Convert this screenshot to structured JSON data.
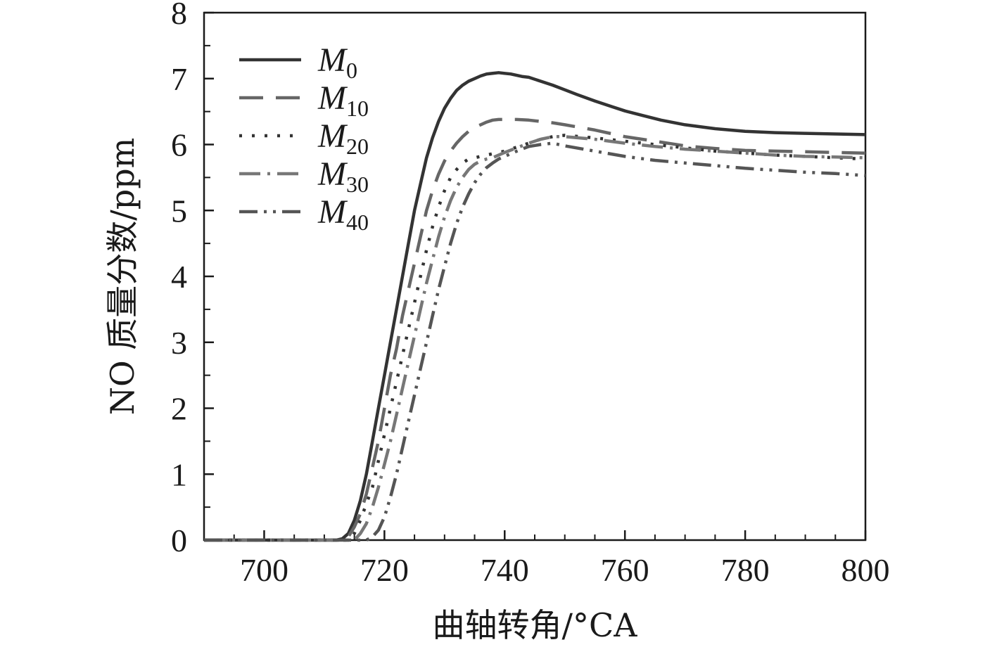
{
  "chart_data": {
    "type": "line",
    "title": "",
    "xlabel": "曲轴转角/°CA",
    "ylabel": "NO 质量分数/ppm",
    "xlim": [
      690,
      800
    ],
    "ylim": [
      0,
      8
    ],
    "xticks": [
      700,
      720,
      740,
      760,
      780,
      800
    ],
    "yticks": [
      0,
      1,
      2,
      3,
      4,
      5,
      6,
      7,
      8
    ],
    "x_minor_step": 5,
    "y_minor_step": 0.5,
    "grid": false,
    "legend_position": "top-left",
    "series": [
      {
        "name": "M0",
        "label_main": "M",
        "label_sub": "0",
        "color": "#333333",
        "dash": "",
        "x": [
          690,
          712,
          713,
          714,
          715,
          716,
          717,
          718,
          719,
          720,
          721,
          722,
          723,
          724,
          725,
          726,
          727,
          728,
          729,
          730,
          731,
          732,
          733,
          734,
          735,
          736,
          737,
          738,
          739,
          740,
          741,
          742,
          743,
          744,
          746,
          748,
          750,
          752,
          755,
          758,
          760,
          763,
          766,
          770,
          775,
          780,
          785,
          790,
          795,
          800
        ],
        "y": [
          0,
          0,
          0.02,
          0.1,
          0.3,
          0.6,
          1.0,
          1.5,
          2.0,
          2.5,
          3.0,
          3.5,
          4.0,
          4.5,
          5.0,
          5.4,
          5.8,
          6.1,
          6.35,
          6.55,
          6.7,
          6.82,
          6.9,
          6.96,
          7.0,
          7.04,
          7.07,
          7.08,
          7.09,
          7.08,
          7.07,
          7.05,
          7.03,
          7.02,
          6.96,
          6.9,
          6.83,
          6.76,
          6.66,
          6.57,
          6.51,
          6.44,
          6.37,
          6.3,
          6.24,
          6.2,
          6.18,
          6.17,
          6.16,
          6.15
        ]
      },
      {
        "name": "M10",
        "label_main": "M",
        "label_sub": "10",
        "color": "#666666",
        "dash": "34,18",
        "x": [
          690,
          713,
          714,
          715,
          716,
          717,
          718,
          719,
          720,
          721,
          722,
          723,
          724,
          725,
          726,
          727,
          728,
          729,
          730,
          731,
          732,
          733,
          734,
          735,
          736,
          737,
          738,
          739,
          740,
          742,
          744,
          746,
          748,
          750,
          755,
          760,
          765,
          770,
          775,
          780,
          785,
          790,
          795,
          800
        ],
        "y": [
          0,
          0,
          0.05,
          0.2,
          0.4,
          0.7,
          1.1,
          1.5,
          2.0,
          2.5,
          2.9,
          3.4,
          3.8,
          4.2,
          4.6,
          5.0,
          5.3,
          5.55,
          5.75,
          5.9,
          6.02,
          6.12,
          6.2,
          6.26,
          6.3,
          6.34,
          6.37,
          6.38,
          6.38,
          6.38,
          6.37,
          6.35,
          6.33,
          6.3,
          6.22,
          6.12,
          6.05,
          5.98,
          5.94,
          5.91,
          5.9,
          5.89,
          5.88,
          5.87
        ]
      },
      {
        "name": "M20",
        "label_main": "M",
        "label_sub": "20",
        "color": "#333333",
        "dash": "4,14",
        "x": [
          690,
          714,
          715,
          716,
          717,
          718,
          719,
          720,
          721,
          722,
          723,
          724,
          725,
          726,
          727,
          728,
          729,
          730,
          731,
          732,
          733,
          734,
          735,
          736,
          737,
          738,
          739,
          740,
          742,
          744,
          746,
          748,
          750,
          755,
          760,
          765,
          770,
          775,
          780,
          785,
          790,
          795,
          800
        ],
        "y": [
          0,
          0,
          0.1,
          0.3,
          0.55,
          0.8,
          1.2,
          1.6,
          2.0,
          2.4,
          2.8,
          3.2,
          3.6,
          4.0,
          4.4,
          4.75,
          5.05,
          5.3,
          5.5,
          5.62,
          5.72,
          5.78,
          5.8,
          5.82,
          5.84,
          5.86,
          5.88,
          5.9,
          5.96,
          6.02,
          6.08,
          6.12,
          6.14,
          6.1,
          6.05,
          6.0,
          5.95,
          5.9,
          5.87,
          5.84,
          5.82,
          5.8,
          5.78
        ]
      },
      {
        "name": "M30",
        "label_main": "M",
        "label_sub": "30",
        "color": "#777777",
        "dash": "30,10,4,10",
        "x": [
          690,
          715,
          716,
          717,
          718,
          719,
          720,
          721,
          722,
          723,
          724,
          725,
          726,
          727,
          728,
          729,
          730,
          731,
          732,
          733,
          734,
          735,
          736,
          737,
          738,
          739,
          740,
          742,
          744,
          746,
          748,
          750,
          755,
          760,
          765,
          770,
          775,
          780,
          785,
          790,
          795,
          800
        ],
        "y": [
          0,
          0,
          0.1,
          0.25,
          0.5,
          0.8,
          1.15,
          1.5,
          1.9,
          2.3,
          2.7,
          3.1,
          3.5,
          3.9,
          4.25,
          4.6,
          4.9,
          5.15,
          5.35,
          5.5,
          5.62,
          5.7,
          5.75,
          5.78,
          5.8,
          5.84,
          5.88,
          5.95,
          6.02,
          6.08,
          6.12,
          6.12,
          6.08,
          6.02,
          5.97,
          5.93,
          5.9,
          5.87,
          5.84,
          5.82,
          5.81,
          5.8
        ]
      },
      {
        "name": "M40",
        "label_main": "M",
        "label_sub": "40",
        "color": "#555555",
        "dash": "26,9,4,9,4,9",
        "x": [
          690,
          717,
          718,
          719,
          720,
          721,
          722,
          723,
          724,
          725,
          726,
          727,
          728,
          729,
          730,
          731,
          732,
          733,
          734,
          735,
          736,
          737,
          738,
          739,
          740,
          742,
          744,
          746,
          748,
          750,
          755,
          760,
          765,
          770,
          775,
          780,
          785,
          790,
          795,
          800
        ],
        "y": [
          0,
          0,
          0.05,
          0.15,
          0.35,
          0.65,
          1.0,
          1.4,
          1.8,
          2.2,
          2.6,
          3.0,
          3.4,
          3.8,
          4.15,
          4.5,
          4.8,
          5.05,
          5.25,
          5.42,
          5.55,
          5.65,
          5.72,
          5.78,
          5.82,
          5.9,
          5.97,
          6.0,
          6.02,
          5.98,
          5.9,
          5.82,
          5.76,
          5.72,
          5.68,
          5.64,
          5.61,
          5.58,
          5.56,
          5.53
        ]
      }
    ]
  }
}
